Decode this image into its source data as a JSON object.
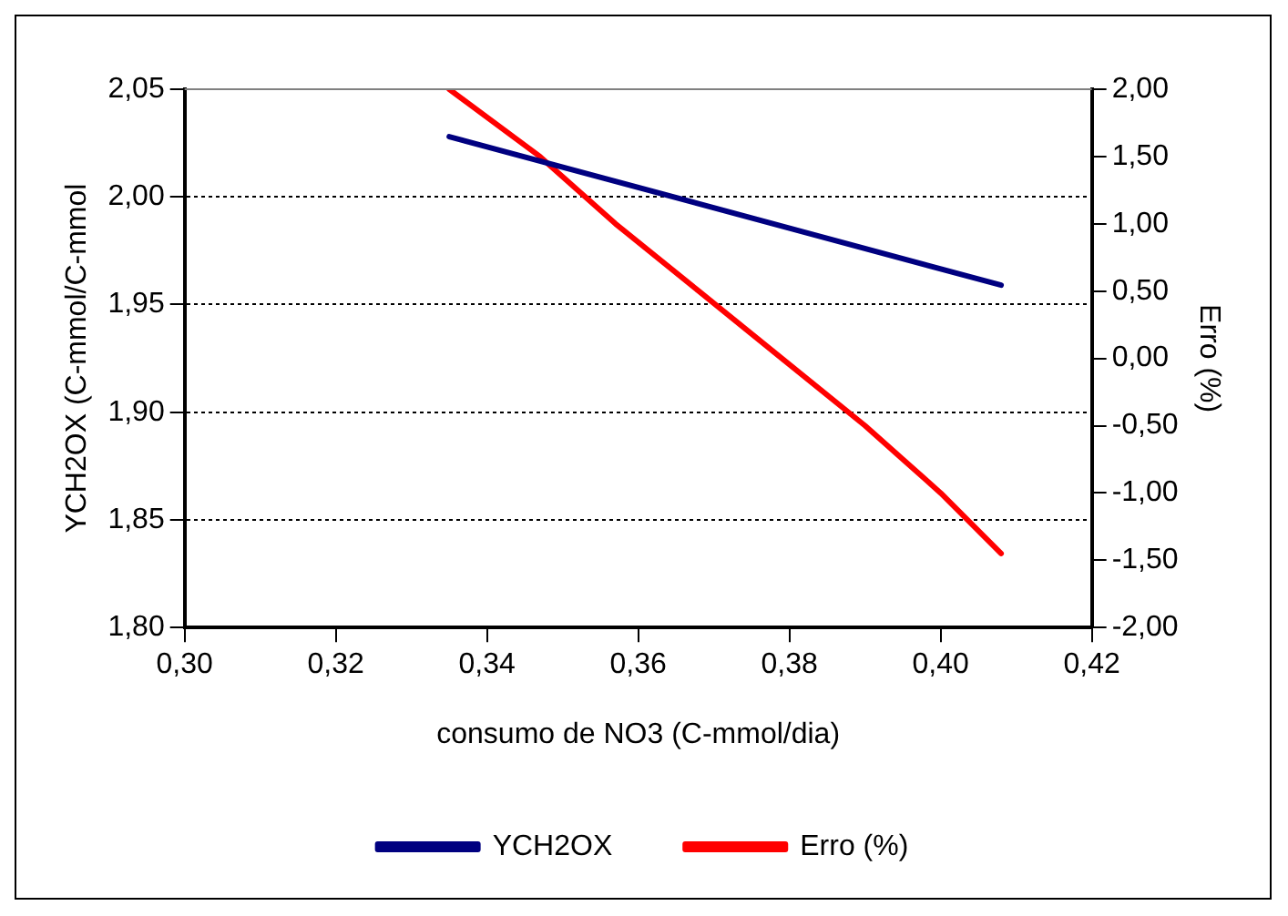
{
  "chart_data": {
    "type": "line",
    "xlabel": "consumo de NO3 (C-mmol/dia)",
    "ylabel": "YCH2OX (C-mmol/C-mmol",
    "y2label": "Erro (%)",
    "xlim": [
      0.3,
      0.42
    ],
    "xticks": [
      {
        "value": 0.3,
        "label": "0,30"
      },
      {
        "value": 0.32,
        "label": "0,32"
      },
      {
        "value": 0.34,
        "label": "0,34"
      },
      {
        "value": 0.36,
        "label": "0,36"
      },
      {
        "value": 0.38,
        "label": "0,38"
      },
      {
        "value": 0.4,
        "label": "0,40"
      },
      {
        "value": 0.42,
        "label": "0,42"
      }
    ],
    "ylim": [
      1.8,
      2.05
    ],
    "yticks": [
      {
        "value": 1.8,
        "label": "1,80"
      },
      {
        "value": 1.85,
        "label": "1,85"
      },
      {
        "value": 1.9,
        "label": "1,90"
      },
      {
        "value": 1.95,
        "label": "1,95"
      },
      {
        "value": 2.0,
        "label": "2,00"
      },
      {
        "value": 2.05,
        "label": "2,05"
      }
    ],
    "y2lim": [
      -2,
      2
    ],
    "y2ticks": [
      {
        "value": -2,
        "label": "-2,00"
      },
      {
        "value": -1.5,
        "label": "-1,50"
      },
      {
        "value": -1,
        "label": "-1,00"
      },
      {
        "value": -0.5,
        "label": "-0,50"
      },
      {
        "value": 0,
        "label": "0,00"
      },
      {
        "value": 0.5,
        "label": "0,50"
      },
      {
        "value": 1,
        "label": "1,00"
      },
      {
        "value": 1.5,
        "label": "1,50"
      },
      {
        "value": 2,
        "label": "2,00"
      }
    ],
    "grid": "y",
    "line_style": "solid",
    "marker": "none",
    "legend": "bottom",
    "series": [
      {
        "name": "YCH2OX",
        "color": "#000080",
        "x": [
          0.335,
          0.408
        ],
        "values": [
          2.028,
          1.959
        ]
      },
      {
        "name": "Erro (%)",
        "color": "#ff0000",
        "axis": "y2",
        "x": [
          0.335,
          0.347,
          0.357,
          0.368,
          0.379,
          0.39,
          0.4,
          0.408
        ],
        "values": [
          2.0,
          1.5,
          1.0,
          0.5,
          0.0,
          -0.5,
          -1.0,
          -1.45
        ]
      }
    ]
  }
}
